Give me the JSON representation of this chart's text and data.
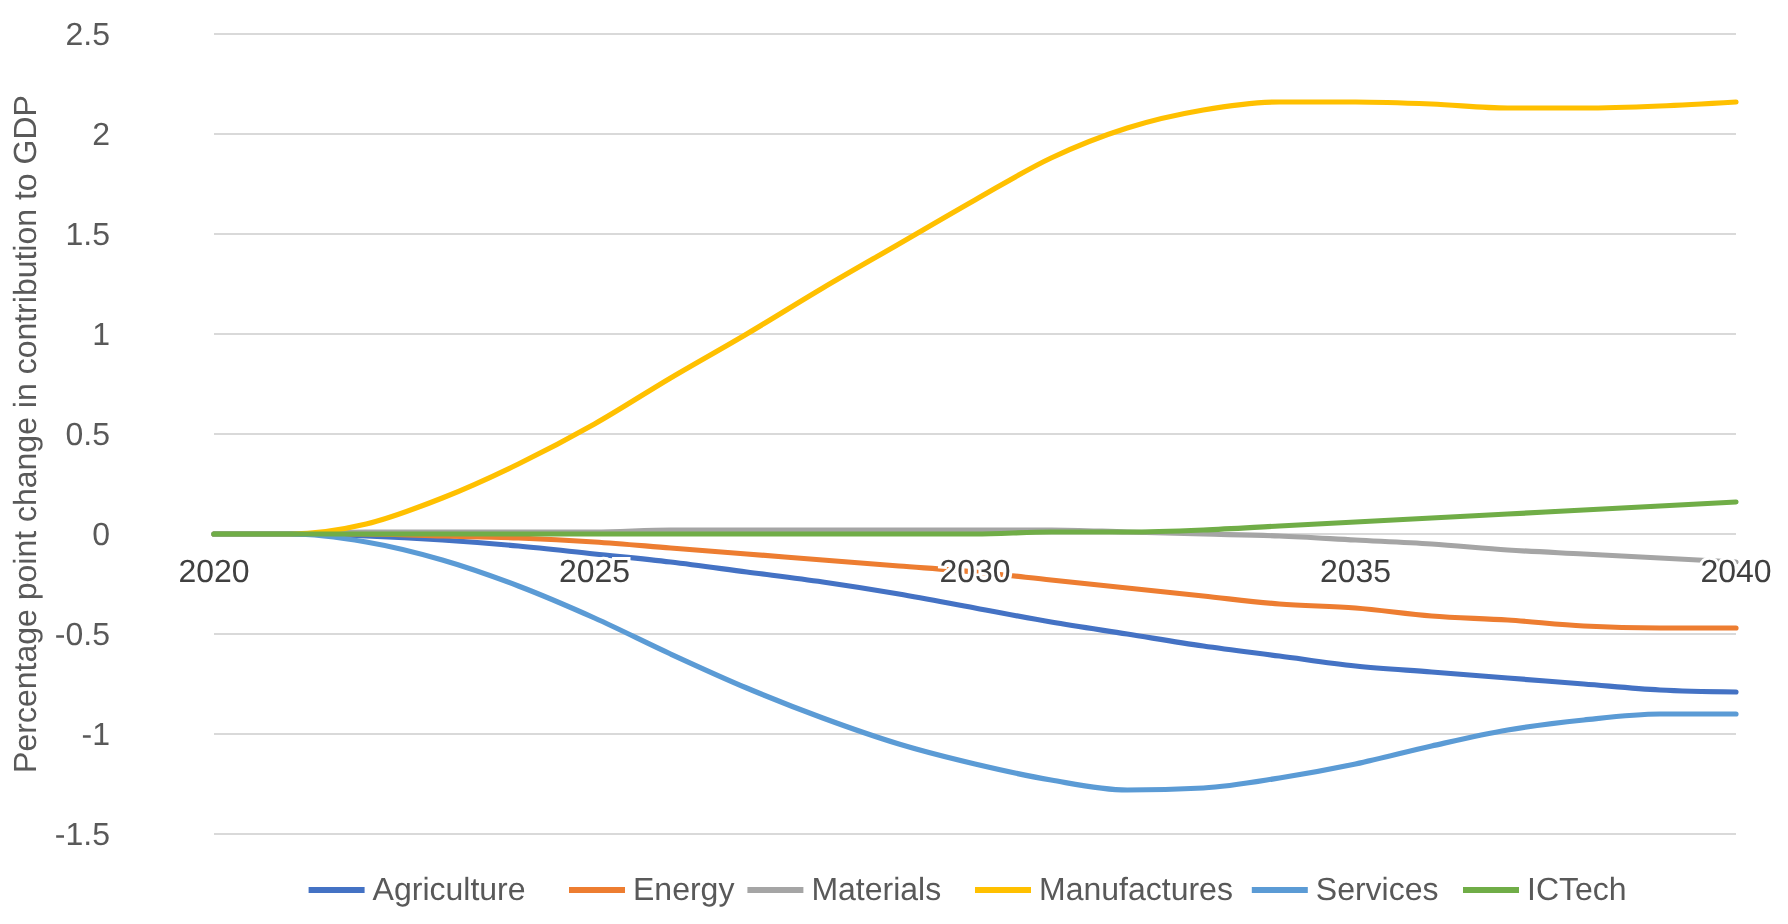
{
  "chart_data": {
    "type": "line",
    "ylabel": "Percentage point change in contribution to GDP",
    "x": [
      2020,
      2021,
      2022,
      2023,
      2024,
      2025,
      2026,
      2027,
      2028,
      2029,
      2030,
      2031,
      2032,
      2033,
      2034,
      2035,
      2036,
      2037,
      2038,
      2039,
      2040
    ],
    "xlim": [
      2020,
      2040
    ],
    "xticks": [
      2020,
      2025,
      2030,
      2035,
      2040
    ],
    "ylim": [
      -1.5,
      2.5
    ],
    "yticks": [
      -1.5,
      -1,
      -0.5,
      0,
      0.5,
      1,
      1.5,
      2,
      2.5
    ],
    "grid": "y",
    "legend": "bottom",
    "marker": "none",
    "line_style": "solid",
    "series": [
      {
        "name": "Agriculture",
        "color": "#4472c4",
        "values": [
          0,
          0,
          -0.01,
          -0.03,
          -0.06,
          -0.1,
          -0.14,
          -0.19,
          -0.24,
          -0.3,
          -0.37,
          -0.44,
          -0.5,
          -0.56,
          -0.61,
          -0.66,
          -0.69,
          -0.72,
          -0.75,
          -0.78,
          -0.79
        ]
      },
      {
        "name": "Energy",
        "color": "#ed7d31",
        "values": [
          0,
          0,
          0,
          -0.01,
          -0.02,
          -0.04,
          -0.07,
          -0.1,
          -0.13,
          -0.16,
          -0.19,
          -0.23,
          -0.27,
          -0.31,
          -0.35,
          -0.37,
          -0.41,
          -0.43,
          -0.46,
          -0.47,
          -0.47
        ]
      },
      {
        "name": "Materials",
        "color": "#a5a5a5",
        "values": [
          0,
          0,
          0.01,
          0.01,
          0.01,
          0.01,
          0.02,
          0.02,
          0.02,
          0.02,
          0.02,
          0.02,
          0.01,
          0,
          -0.01,
          -0.03,
          -0.05,
          -0.08,
          -0.1,
          -0.12,
          -0.14
        ]
      },
      {
        "name": "Manufactures",
        "color": "#ffc000",
        "values": [
          0,
          0,
          0.05,
          0.18,
          0.35,
          0.55,
          0.78,
          1.0,
          1.23,
          1.45,
          1.67,
          1.88,
          2.03,
          2.12,
          2.16,
          2.16,
          2.15,
          2.13,
          2.13,
          2.14,
          2.16
        ]
      },
      {
        "name": "Services",
        "color": "#5b9bd5",
        "values": [
          0,
          0,
          -0.04,
          -0.13,
          -0.26,
          -0.42,
          -0.6,
          -0.77,
          -0.92,
          -1.05,
          -1.15,
          -1.23,
          -1.28,
          -1.27,
          -1.22,
          -1.15,
          -1.06,
          -0.98,
          -0.93,
          -0.9,
          -0.9
        ]
      },
      {
        "name": "ICTech",
        "color": "#70ad47",
        "values": [
          0,
          0,
          0,
          0,
          0,
          0,
          0,
          0,
          0,
          0,
          0,
          0.01,
          0.01,
          0.02,
          0.04,
          0.06,
          0.08,
          0.1,
          0.12,
          0.14,
          0.16
        ]
      }
    ]
  }
}
